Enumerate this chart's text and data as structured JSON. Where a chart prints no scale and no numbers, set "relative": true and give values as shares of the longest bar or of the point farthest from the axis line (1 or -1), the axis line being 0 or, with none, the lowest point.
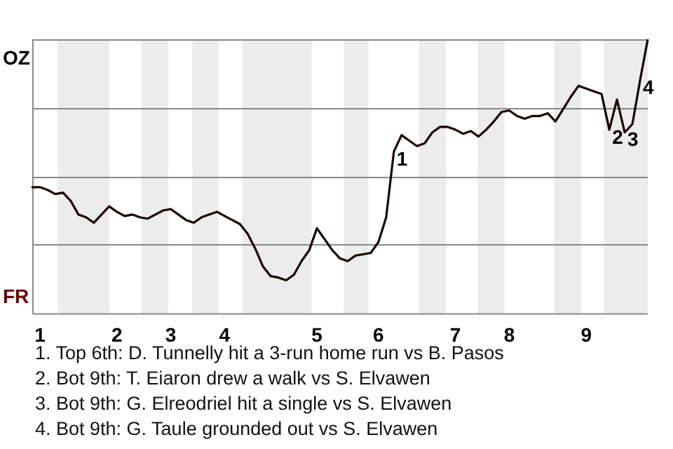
{
  "chart_data": {
    "type": "line",
    "relative": true,
    "grid": "y",
    "marker": "none",
    "line_style": "solid",
    "categories": [
      null,
      "1",
      null,
      null,
      null,
      null,
      null,
      null,
      null,
      null,
      null,
      "2",
      null,
      null,
      null,
      null,
      null,
      null,
      "3",
      null,
      null,
      null,
      null,
      null,
      null,
      "4",
      null,
      null,
      null,
      null,
      null,
      null,
      null,
      null,
      null,
      null,
      null,
      "5",
      null,
      null,
      null,
      null,
      null,
      null,
      null,
      "6",
      null,
      null,
      null,
      null,
      null,
      null,
      null,
      null,
      null,
      "7",
      null,
      null,
      null,
      null,
      null,
      null,
      "8",
      null,
      null,
      null,
      null,
      null,
      null,
      null,
      null,
      null,
      "9",
      null,
      null,
      null,
      null,
      null,
      null,
      null,
      null
    ],
    "series": [
      {
        "color": "#1a0000",
        "values": [
          0.46,
          0.46,
          0.45,
          0.435,
          0.44,
          0.41,
          0.36,
          0.35,
          0.33,
          0.36,
          0.39,
          0.37,
          0.355,
          0.36,
          0.35,
          0.345,
          0.36,
          0.375,
          0.38,
          0.36,
          0.34,
          0.33,
          0.35,
          0.36,
          0.37,
          0.355,
          0.34,
          0.325,
          0.29,
          0.235,
          0.17,
          0.135,
          0.13,
          0.12,
          0.14,
          0.19,
          0.23,
          0.31,
          0.27,
          0.23,
          0.2,
          0.19,
          0.21,
          0.215,
          0.22,
          0.26,
          0.35,
          0.59,
          0.65,
          0.63,
          0.61,
          0.62,
          0.66,
          0.68,
          0.68,
          0.67,
          0.655,
          0.665,
          0.645,
          0.67,
          0.7,
          0.735,
          0.74,
          0.72,
          0.71,
          0.72,
          0.72,
          0.73,
          0.7,
          0.745,
          0.79,
          0.83,
          0.82,
          0.81,
          0.8,
          0.67,
          0.78,
          0.66,
          0.69,
          0.85,
          1
        ]
      }
    ],
    "annotations": [
      "OZ",
      "FR",
      {
        "text": "1",
        "y": 0.59
      },
      {
        "text": "2",
        "y": 0.67
      },
      {
        "text": "3",
        "y": 0.66
      },
      {
        "text": "4",
        "y": 0.85
      },
      "1. Top 6th: D. Tunnelly hit a 3-run home run vs B. Pasos",
      "2. Bot 9th: T. Eiaron drew a walk vs S. Elvawen",
      "3. Bot 9th: G. Elreodriel hit a single vs S. Elvawen",
      "4. Bot 9th: G. Taule grounded out vs S. Elvawen"
    ]
  }
}
